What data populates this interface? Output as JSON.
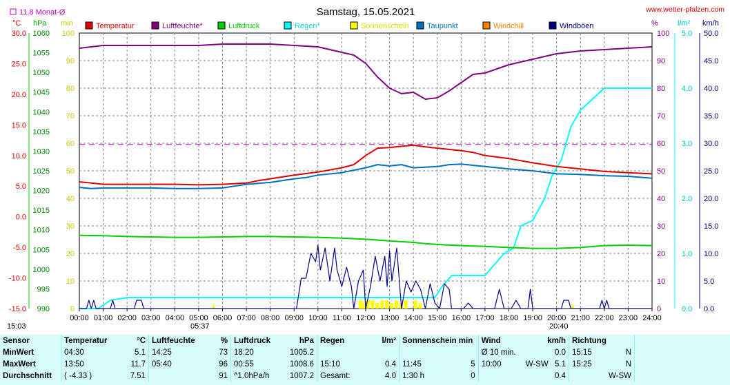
{
  "title": "Samstag, 15.05.2021",
  "source": "www.wetter-pfalzen.com",
  "monthly_avg_label": "11.8 Monat-Ø",
  "time_start": "15:03",
  "sunrise_time": "05:37",
  "sunset_time": "20:40",
  "units": {
    "temp": "°C",
    "press": "hPa",
    "min": "min",
    "pct": "%",
    "rain": "l/m²",
    "wind": "km/h"
  },
  "legend": [
    {
      "label": "Temperatur",
      "color": "#e00000"
    },
    {
      "label": "Luftfeuchte*",
      "color": "#800080"
    },
    {
      "label": "Luftdruck",
      "color": "#00d000"
    },
    {
      "label": "Regen*",
      "color": "#00ffff"
    },
    {
      "label": "Sonnenschein",
      "color": "#ffff00"
    },
    {
      "label": "Taupunkt",
      "color": "#0070c0"
    },
    {
      "label": "Windchill",
      "color": "#ff8000"
    },
    {
      "label": "Windböen",
      "color": "#000080"
    }
  ],
  "chart_data": {
    "type": "line",
    "title": "Samstag, 15.05.2021",
    "x_ticks": [
      "00:00",
      "01:00",
      "02:00",
      "03:00",
      "04:00",
      "05:00",
      "06:00",
      "07:00",
      "08:00",
      "09:00",
      "10:00",
      "11:00",
      "12:00",
      "13:00",
      "14:00",
      "15:00",
      "16:00",
      "17:00",
      "18:00",
      "19:00",
      "20:00",
      "21:00",
      "22:00",
      "23:00",
      "24:00"
    ],
    "axes": {
      "temperature": {
        "unit": "°C",
        "ticks": [
          "30.0",
          "25.0",
          "20.0",
          "15.0",
          "10.0",
          "5.0",
          "0.0",
          "-5.0",
          "-10.0",
          "-15.0"
        ],
        "range": [
          -15,
          30
        ]
      },
      "pressure": {
        "unit": "hPa",
        "ticks": [
          "1060",
          "1055",
          "1050",
          "1045",
          "1040",
          "1035",
          "1030",
          "1025",
          "1020",
          "1015",
          "1010",
          "1005",
          "1000",
          "995",
          "990"
        ],
        "range": [
          990,
          1060
        ]
      },
      "sunshine": {
        "unit": "min",
        "ticks": [
          "100",
          "90",
          "80",
          "70",
          "60",
          "50",
          "40",
          "30",
          "20",
          "10",
          "0"
        ],
        "range": [
          0,
          100
        ]
      },
      "humidity": {
        "unit": "%",
        "ticks": [
          "100",
          "90",
          "80",
          "70",
          "60",
          "50",
          "40",
          "30",
          "20",
          "10",
          "0"
        ],
        "range": [
          0,
          100
        ]
      },
      "rain": {
        "unit": "l/m²",
        "ticks": [
          "5.0",
          "4.0",
          "3.0",
          "2.0",
          "1.0",
          "0.0"
        ],
        "range": [
          0,
          5
        ]
      },
      "wind": {
        "unit": "km/h",
        "ticks": [
          "50.0",
          "45.0",
          "40.0",
          "35.0",
          "30.0",
          "25.0",
          "20.0",
          "15.0",
          "10.0",
          "5.0",
          "0.0"
        ],
        "range": [
          0,
          50
        ]
      }
    },
    "monthly_avg_temp": 11.8,
    "series": [
      {
        "name": "Temperatur",
        "axis": "temperature",
        "color": "#e00000",
        "points": [
          [
            0,
            5.7
          ],
          [
            0.5,
            5.5
          ],
          [
            1,
            5.3
          ],
          [
            2,
            5.3
          ],
          [
            3,
            5.3
          ],
          [
            4,
            5.3
          ],
          [
            5,
            5.2
          ],
          [
            6,
            5.3
          ],
          [
            7,
            5.5
          ],
          [
            7.5,
            5.9
          ],
          [
            8,
            6.2
          ],
          [
            9,
            6.8
          ],
          [
            10,
            7.3
          ],
          [
            11,
            8.0
          ],
          [
            11.5,
            8.5
          ],
          [
            12,
            10.0
          ],
          [
            12.5,
            11.2
          ],
          [
            13,
            11.3
          ],
          [
            13.5,
            11.5
          ],
          [
            14,
            11.7
          ],
          [
            14.5,
            11.4
          ],
          [
            15,
            11.2
          ],
          [
            16,
            10.8
          ],
          [
            16.5,
            10.5
          ],
          [
            17,
            10.0
          ],
          [
            18,
            9.5
          ],
          [
            19,
            8.8
          ],
          [
            20,
            8.2
          ],
          [
            21,
            7.8
          ],
          [
            22,
            7.4
          ],
          [
            23,
            7.2
          ],
          [
            24,
            7.0
          ]
        ]
      },
      {
        "name": "Luftfeuchte*",
        "axis": "humidity",
        "color": "#800080",
        "points": [
          [
            0,
            94.5
          ],
          [
            1,
            95.5
          ],
          [
            2,
            95.5
          ],
          [
            3,
            95.5
          ],
          [
            4,
            95.5
          ],
          [
            5,
            95.5
          ],
          [
            6,
            96
          ],
          [
            7,
            96
          ],
          [
            8,
            96
          ],
          [
            9,
            95.5
          ],
          [
            10,
            95
          ],
          [
            11,
            93
          ],
          [
            11.5,
            92
          ],
          [
            12,
            89
          ],
          [
            12.5,
            84
          ],
          [
            13,
            80
          ],
          [
            13.5,
            78
          ],
          [
            14,
            78.5
          ],
          [
            14.5,
            76
          ],
          [
            15,
            76.5
          ],
          [
            15.5,
            79
          ],
          [
            16,
            82
          ],
          [
            16.5,
            85
          ],
          [
            17,
            85.5
          ],
          [
            17.5,
            87
          ],
          [
            18,
            88.5
          ],
          [
            19,
            90.5
          ],
          [
            20,
            92.5
          ],
          [
            21,
            93.5
          ],
          [
            22,
            94
          ],
          [
            23,
            94.5
          ],
          [
            24,
            95
          ]
        ]
      },
      {
        "name": "Luftdruck",
        "axis": "pressure",
        "color": "#00d000",
        "points": [
          [
            0,
            1008.6
          ],
          [
            1,
            1008.5
          ],
          [
            2,
            1008.3
          ],
          [
            3,
            1008.2
          ],
          [
            4,
            1008.1
          ],
          [
            5,
            1008.1
          ],
          [
            6,
            1008.2
          ],
          [
            7,
            1008.3
          ],
          [
            8,
            1008.3
          ],
          [
            9,
            1008.2
          ],
          [
            10,
            1008.1
          ],
          [
            11,
            1007.9
          ],
          [
            12,
            1007.6
          ],
          [
            13,
            1007.2
          ],
          [
            14,
            1006.8
          ],
          [
            14.5,
            1006.5
          ],
          [
            15,
            1006.3
          ],
          [
            16,
            1006.0
          ],
          [
            17,
            1005.8
          ],
          [
            18,
            1005.5
          ],
          [
            19,
            1005.3
          ],
          [
            20,
            1005.3
          ],
          [
            21,
            1005.5
          ],
          [
            22,
            1006.0
          ],
          [
            23,
            1006.1
          ],
          [
            24,
            1006.0
          ]
        ]
      },
      {
        "name": "Regen*",
        "axis": "rain",
        "color": "#00ffff",
        "points": [
          [
            0,
            0
          ],
          [
            0.8,
            0
          ],
          [
            1.3,
            0.15
          ],
          [
            2,
            0.2
          ],
          [
            3,
            0.2
          ],
          [
            4,
            0.2
          ],
          [
            5,
            0.2
          ],
          [
            6,
            0.2
          ],
          [
            7,
            0.2
          ],
          [
            8,
            0.2
          ],
          [
            9,
            0.2
          ],
          [
            10,
            0.2
          ],
          [
            11,
            0.2
          ],
          [
            12,
            0.2
          ],
          [
            13,
            0.2
          ],
          [
            14,
            0.2
          ],
          [
            14.9,
            0.2
          ],
          [
            15.2,
            0.4
          ],
          [
            15.6,
            0.6
          ],
          [
            16,
            0.6
          ],
          [
            17,
            0.6
          ],
          [
            17.2,
            0.7
          ],
          [
            17.8,
            1.0
          ],
          [
            18.2,
            1.1
          ],
          [
            18.5,
            1.5
          ],
          [
            19,
            1.6
          ],
          [
            19.5,
            2.0
          ],
          [
            19.8,
            2.4
          ],
          [
            20.2,
            2.7
          ],
          [
            20.6,
            3.3
          ],
          [
            21,
            3.6
          ],
          [
            21.5,
            3.8
          ],
          [
            22,
            4.0
          ],
          [
            23,
            4.0
          ],
          [
            24,
            4.0
          ]
        ]
      },
      {
        "name": "Taupunkt",
        "axis": "temperature",
        "color": "#0070c0",
        "points": [
          [
            0,
            4.8
          ],
          [
            0.5,
            4.6
          ],
          [
            1,
            4.7
          ],
          [
            2,
            4.7
          ],
          [
            3,
            4.7
          ],
          [
            4,
            4.6
          ],
          [
            5,
            4.6
          ],
          [
            6,
            4.7
          ],
          [
            7,
            5.3
          ],
          [
            8,
            5.6
          ],
          [
            9,
            6.2
          ],
          [
            9.5,
            6.4
          ],
          [
            10,
            6.8
          ],
          [
            11,
            7.2
          ],
          [
            12,
            8.0
          ],
          [
            12.5,
            8.5
          ],
          [
            13,
            8.3
          ],
          [
            13.5,
            8.5
          ],
          [
            14,
            8.0
          ],
          [
            14.5,
            8.1
          ],
          [
            15,
            8.2
          ],
          [
            15.5,
            8.5
          ],
          [
            16,
            8.6
          ],
          [
            17,
            8.2
          ],
          [
            18,
            7.8
          ],
          [
            19,
            7.5
          ],
          [
            20,
            7.0
          ],
          [
            21,
            6.9
          ],
          [
            22,
            6.7
          ],
          [
            23,
            6.6
          ],
          [
            24,
            6.3
          ]
        ]
      },
      {
        "name": "Windböen",
        "axis": "wind",
        "color": "#000080",
        "points": [
          [
            0,
            0
          ],
          [
            0.3,
            0
          ],
          [
            0.4,
            1.5
          ],
          [
            0.5,
            0
          ],
          [
            0.6,
            1.5
          ],
          [
            0.7,
            0
          ],
          [
            1.3,
            0
          ],
          [
            1.4,
            1.5
          ],
          [
            1.5,
            0
          ],
          [
            2.3,
            0
          ],
          [
            2.4,
            1.5
          ],
          [
            2.6,
            1.5
          ],
          [
            2.7,
            0
          ],
          [
            9.1,
            0
          ],
          [
            9.3,
            5.5
          ],
          [
            9.5,
            5.5
          ],
          [
            9.7,
            10
          ],
          [
            9.9,
            8.5
          ],
          [
            10,
            11.5
          ],
          [
            10.1,
            7
          ],
          [
            10.3,
            11
          ],
          [
            10.5,
            5
          ],
          [
            10.7,
            11
          ],
          [
            10.8,
            7
          ],
          [
            11,
            4
          ],
          [
            11.2,
            7.5
          ],
          [
            11.4,
            4
          ],
          [
            11.5,
            0
          ],
          [
            11.7,
            5
          ],
          [
            11.9,
            7
          ],
          [
            12,
            0
          ],
          [
            12.2,
            4
          ],
          [
            12.4,
            9.5
          ],
          [
            12.6,
            5
          ],
          [
            12.8,
            9.5
          ],
          [
            12.9,
            4
          ],
          [
            13,
            10.5
          ],
          [
            13.1,
            5
          ],
          [
            13.3,
            11
          ],
          [
            13.5,
            0
          ],
          [
            13.7,
            5
          ],
          [
            13.9,
            3
          ],
          [
            14.1,
            5
          ],
          [
            14.3,
            3.5
          ],
          [
            14.5,
            0
          ],
          [
            14.7,
            4.5
          ],
          [
            14.9,
            1
          ],
          [
            15.1,
            0
          ],
          [
            15.3,
            4.5
          ],
          [
            15.5,
            3.5
          ],
          [
            15.6,
            0
          ],
          [
            16.1,
            0
          ],
          [
            16.3,
            1
          ],
          [
            16.5,
            0
          ],
          [
            17.4,
            0
          ],
          [
            17.6,
            3.5
          ],
          [
            17.8,
            0
          ],
          [
            18.1,
            0
          ],
          [
            18.3,
            1.5
          ],
          [
            18.5,
            0
          ],
          [
            18.8,
            0
          ],
          [
            18.9,
            3.5
          ],
          [
            19,
            0
          ],
          [
            20.2,
            0
          ],
          [
            20.3,
            1.5
          ],
          [
            20.5,
            1.5
          ],
          [
            20.6,
            0
          ],
          [
            21.8,
            0
          ],
          [
            21.9,
            1.5
          ],
          [
            22,
            0
          ],
          [
            22.1,
            1.5
          ],
          [
            22.2,
            0
          ],
          [
            24,
            0
          ]
        ]
      }
    ],
    "sunshine_bars": [
      [
        11.8,
        3
      ],
      [
        11.9,
        2
      ],
      [
        12.1,
        3
      ],
      [
        12.3,
        3
      ],
      [
        12.5,
        2
      ],
      [
        12.7,
        3
      ],
      [
        12.9,
        3
      ],
      [
        13.1,
        2
      ],
      [
        13.3,
        3
      ],
      [
        13.5,
        2
      ],
      [
        13.7,
        3
      ],
      [
        14.1,
        3
      ],
      [
        14.3,
        2
      ]
    ]
  },
  "stats": {
    "headers": {
      "sensor": "Sensor",
      "temperature": "Temperatur",
      "temperature_unit": "°C",
      "humidity": "Luftfeuchte",
      "humidity_unit": "%",
      "pressure": "Luftdruck",
      "pressure_unit": "hPa",
      "rain": "Regen",
      "rain_unit": "l/m²",
      "sun": "Sonnenschein min",
      "wind": "Wind",
      "wind_unit": "km/h",
      "direction": "Richtung"
    },
    "rows": [
      {
        "label": "MinWert",
        "temp_time": "04:30",
        "temp_val": "5.1",
        "hum_time": "14:25",
        "hum_val": "73",
        "press_time": "18:20",
        "press_val": "1005.2",
        "rain_time": "",
        "rain_val": "",
        "sun_time": "",
        "sun_val": "",
        "wind_time": "Ø 10 min.",
        "wind_dir": "",
        "wind_val": "0.0",
        "dir_time": "15:15",
        "dir_val": "N"
      },
      {
        "label": "MaxWert",
        "temp_time": "13:50",
        "temp_val": "11.7",
        "hum_time": "05:40",
        "hum_val": "96",
        "press_time": "00:55",
        "press_val": "1008.6",
        "rain_time": "15:10",
        "rain_val": "0.4",
        "sun_time": "11:45",
        "sun_val": "5",
        "wind_time": "10:00",
        "wind_dir": "W-SW",
        "wind_val": "5.1",
        "dir_time": "15:25",
        "dir_val": "N"
      },
      {
        "label": "Durchschnitt",
        "temp_time": "( -4.33 )",
        "temp_val": "7.51",
        "hum_time": "",
        "hum_val": "91",
        "press_time": "^1.0hPa/h",
        "press_val": "1007.2",
        "rain_time": "Gesamt:",
        "rain_val": "4.0",
        "sun_time": "1:30 h",
        "sun_val": "0",
        "wind_time": "",
        "wind_dir": "",
        "wind_val": "0.4",
        "dir_time": "",
        "dir_val": "W-SW"
      }
    ]
  }
}
